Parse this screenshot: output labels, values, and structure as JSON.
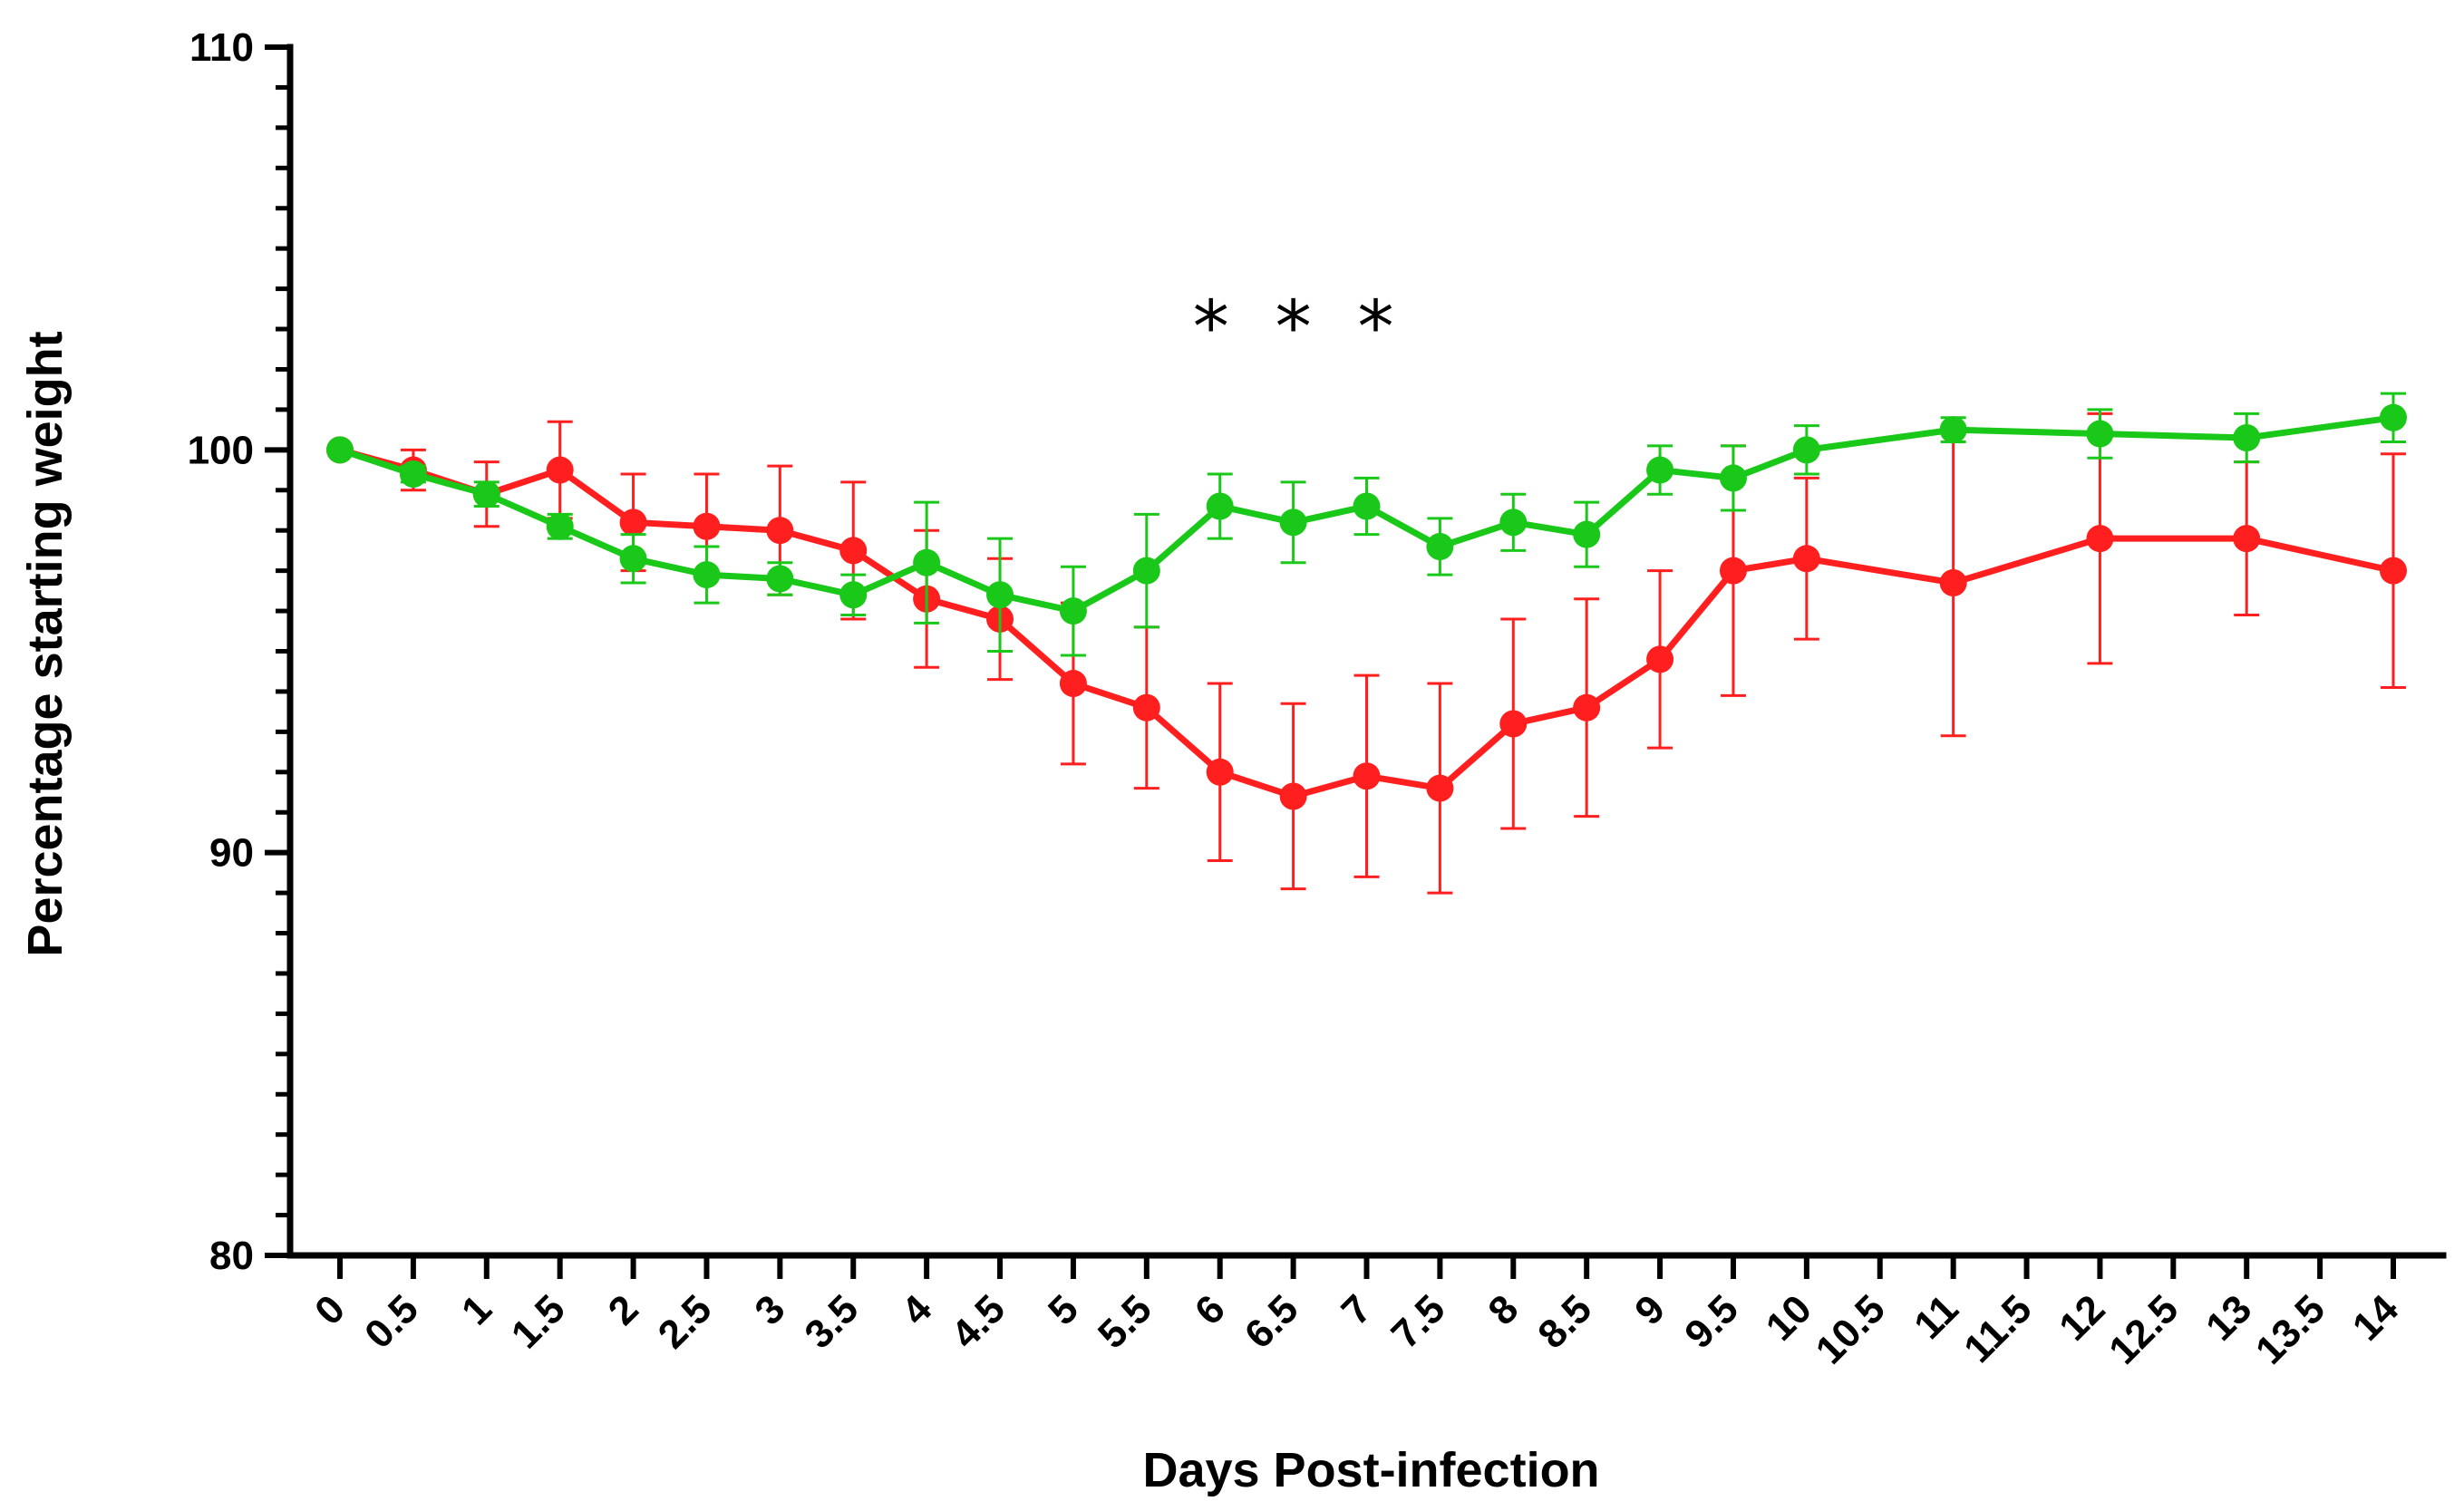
{
  "chart_data": {
    "type": "line",
    "title": "",
    "xlabel": "Days Post-infection",
    "ylabel": "Percentage starting weight",
    "ylim": [
      80,
      110
    ],
    "xlim": [
      0,
      14
    ],
    "yticks": [
      "80",
      "90",
      "100",
      "110"
    ],
    "xticks": [
      "0",
      "0.5",
      "1",
      "1.5",
      "2",
      "2.5",
      "3",
      "3.5",
      "4",
      "4.5",
      "5",
      "5.5",
      "6",
      "6.5",
      "7",
      "7.5",
      "8",
      "8.5",
      "9",
      "9.5",
      "10",
      "10.5",
      "11",
      "11.5",
      "12",
      "12.5",
      "13",
      "13.5",
      "14"
    ],
    "annotation": {
      "text": "*  *  *",
      "x": 6.5,
      "y": 103.6
    },
    "series": [
      {
        "name": "red",
        "color": "#ff1f1f",
        "x": [
          0,
          0.5,
          1,
          1.5,
          2,
          2.5,
          3,
          3.5,
          4,
          4.5,
          5,
          5.5,
          6,
          6.5,
          7,
          7.5,
          8,
          8.5,
          9,
          9.5,
          10,
          11,
          12,
          13,
          14
        ],
        "y": [
          100,
          99.5,
          98.9,
          99.5,
          98.2,
          98.1,
          98.0,
          97.5,
          96.3,
          95.8,
          94.2,
          93.6,
          92.0,
          91.4,
          91.9,
          91.6,
          93.2,
          93.6,
          94.8,
          97.0,
          97.3,
          96.7,
          97.8,
          97.8,
          97.0
        ],
        "err": [
          0,
          0.5,
          0.8,
          1.2,
          1.2,
          1.3,
          1.6,
          1.7,
          1.7,
          1.5,
          2.0,
          2.0,
          2.2,
          2.3,
          2.5,
          2.6,
          2.6,
          2.7,
          2.2,
          3.1,
          2.0,
          3.8,
          3.1,
          1.9,
          2.9
        ]
      },
      {
        "name": "green",
        "color": "#19c819",
        "x": [
          0,
          0.5,
          1,
          1.5,
          2,
          2.5,
          3,
          3.5,
          4,
          4.5,
          5,
          5.5,
          6,
          6.5,
          7,
          7.5,
          8,
          8.5,
          9,
          9.5,
          10,
          11,
          12,
          13,
          14
        ],
        "y": [
          100,
          99.4,
          98.9,
          98.1,
          97.3,
          96.9,
          96.8,
          96.4,
          97.2,
          96.4,
          96.0,
          97.0,
          98.6,
          98.2,
          98.6,
          97.6,
          98.2,
          97.9,
          99.5,
          99.3,
          100.0,
          100.5,
          100.4,
          100.3,
          100.8
        ],
        "err": [
          0,
          0.2,
          0.3,
          0.3,
          0.6,
          0.7,
          0.4,
          0.5,
          1.5,
          1.4,
          1.1,
          1.4,
          0.8,
          1.0,
          0.7,
          0.7,
          0.7,
          0.8,
          0.6,
          0.8,
          0.6,
          0.3,
          0.6,
          0.6,
          0.6
        ]
      }
    ]
  }
}
